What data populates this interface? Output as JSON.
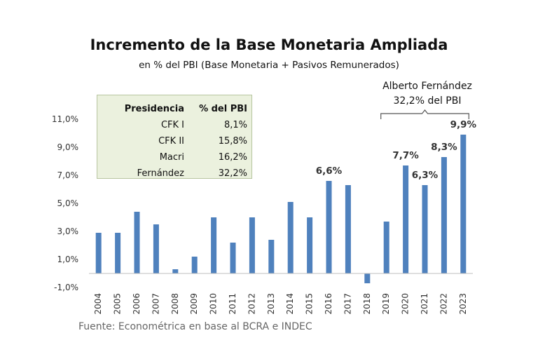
{
  "chart_data": {
    "type": "bar",
    "title": "Incremento de la Base Monetaria Ampliada",
    "subtitle": "en % del PBI (Base Monetaria + Pasivos Remunerados)",
    "categories": [
      "2004",
      "2005",
      "2006",
      "2007",
      "2008",
      "2009",
      "2010",
      "2011",
      "2012",
      "2013",
      "2014",
      "2015",
      "2016",
      "2017",
      "2018",
      "2019",
      "2020",
      "2021",
      "2022",
      "2023"
    ],
    "values": [
      2.9,
      2.9,
      4.4,
      3.5,
      0.3,
      1.2,
      4.0,
      2.2,
      4.0,
      2.4,
      5.1,
      4.0,
      6.6,
      6.3,
      -0.7,
      3.7,
      7.7,
      6.3,
      8.3,
      9.9
    ],
    "data_labels": {
      "2016": "6,6%",
      "2020": "7,7%",
      "2021": "6,3%",
      "2022": "8,3%",
      "2023": "9,9%"
    },
    "ylim": [
      -1,
      11
    ],
    "yticks": [
      -1,
      1,
      3,
      5,
      7,
      9,
      11
    ],
    "ytick_labels": [
      "-1,0%",
      "1,0%",
      "3,0%",
      "5,0%",
      "7,0%",
      "9,0%",
      "11,0%"
    ],
    "bar_color": "#4f81bd",
    "grid": false,
    "xlabel": "",
    "ylabel": ""
  },
  "table": {
    "headers": [
      "Presidencia",
      "% del PBI"
    ],
    "rows": [
      [
        "CFK I",
        "8,1%"
      ],
      [
        "CFK II",
        "15,8%"
      ],
      [
        "Macri",
        "16,2%"
      ],
      [
        "Fernández",
        "32,2%"
      ]
    ],
    "background": "#ebf1de"
  },
  "annotation": {
    "line1": "Alberto Fernández",
    "line2": "32,2% del PBI",
    "from": "2019",
    "to": "2023"
  },
  "source": "Fuente: Econométrica en base al BCRA e INDEC"
}
